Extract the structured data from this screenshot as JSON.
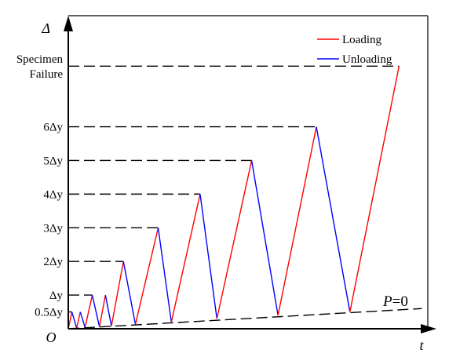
{
  "chart_data": {
    "type": "line",
    "title": "",
    "xlabel": "t",
    "ylabel": "Δ",
    "origin_label": "O",
    "y_tick_labels": [
      {
        "label": "0.5Δy",
        "value": 0.5
      },
      {
        "label": "Δy",
        "value": 1
      },
      {
        "label": "2Δy",
        "value": 2
      },
      {
        "label": "3Δy",
        "value": 3
      },
      {
        "label": "4Δy",
        "value": 4
      },
      {
        "label": "5Δy",
        "value": 5
      },
      {
        "label": "6Δy",
        "value": 6
      },
      {
        "label": "Specimen\nFailure",
        "value": 7.8
      }
    ],
    "legend": {
      "position": "top-right",
      "entries": [
        {
          "label": "Loading",
          "color": "#ff0000"
        },
        {
          "label": "Unloading",
          "color": "#0000ff"
        }
      ]
    },
    "baseline_annotation": {
      "label_italic": "P",
      "label_rest": "=0"
    },
    "cycles": [
      {
        "amplitude": 0.5,
        "t_start": 0.0,
        "t_peak": 0.3,
        "t_end": 0.7,
        "base_start": 0.0,
        "base_end": 0.02
      },
      {
        "amplitude": 0.5,
        "t_start": 0.7,
        "t_peak": 1.0,
        "t_end": 1.4,
        "base_start": 0.02,
        "base_end": 0.04
      },
      {
        "amplitude": 1,
        "t_start": 1.4,
        "t_peak": 2.0,
        "t_end": 2.6,
        "base_start": 0.04,
        "base_end": 0.06
      },
      {
        "amplitude": 1,
        "t_start": 2.6,
        "t_peak": 3.1,
        "t_end": 3.6,
        "base_start": 0.06,
        "base_end": 0.08
      },
      {
        "amplitude": 2,
        "t_start": 3.6,
        "t_peak": 4.6,
        "t_end": 5.6,
        "base_start": 0.08,
        "base_end": 0.13
      },
      {
        "amplitude": 3,
        "t_start": 5.6,
        "t_peak": 7.5,
        "t_end": 8.6,
        "base_start": 0.13,
        "base_end": 0.2
      },
      {
        "amplitude": 4,
        "t_start": 8.6,
        "t_peak": 11.0,
        "t_end": 12.4,
        "base_start": 0.2,
        "base_end": 0.3
      },
      {
        "amplitude": 5,
        "t_start": 12.4,
        "t_peak": 15.3,
        "t_end": 17.5,
        "base_start": 0.3,
        "base_end": 0.4
      },
      {
        "amplitude": 6,
        "t_start": 17.5,
        "t_peak": 20.7,
        "t_end": 23.5,
        "base_start": 0.4,
        "base_end": 0.5
      },
      {
        "amplitude": 7.8,
        "t_start": 23.5,
        "t_peak": 27.6,
        "t_end": null,
        "base_start": 0.5,
        "base_end": null
      }
    ],
    "baseline_line": {
      "t_start": 0.0,
      "t_end": 29.5,
      "value_start": 0.0,
      "value_end": 0.6
    },
    "xlim": [
      0,
      30
    ],
    "ylim": [
      0,
      9.3
    ]
  }
}
